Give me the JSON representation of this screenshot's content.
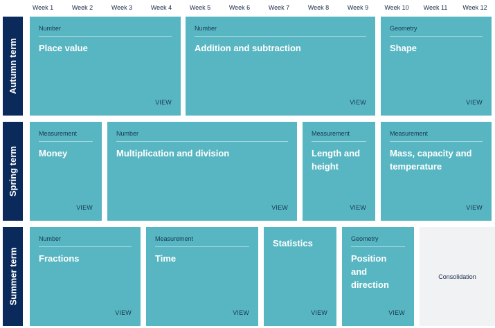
{
  "weeks": [
    "Week 1",
    "Week 2",
    "Week 3",
    "Week 4",
    "Week 5",
    "Week 6",
    "Week 7",
    "Week 8",
    "Week 9",
    "Week 10",
    "Week 11",
    "Week 12"
  ],
  "terms": {
    "autumn": {
      "label": "Autumn term",
      "cards": [
        {
          "category": "Number",
          "title": "Place value",
          "view": "VIEW"
        },
        {
          "category": "Number",
          "title": "Addition and subtraction",
          "view": "VIEW"
        },
        {
          "category": "Geometry",
          "title": "Shape",
          "view": "VIEW"
        }
      ]
    },
    "spring": {
      "label": "Spring term",
      "cards": [
        {
          "category": "Measurement",
          "title": "Money",
          "view": "VIEW"
        },
        {
          "category": "Number",
          "title": "Multiplication and division",
          "view": "VIEW"
        },
        {
          "category": "Measurement",
          "title": "Length and height",
          "view": "VIEW"
        },
        {
          "category": "Measurement",
          "title": "Mass, capacity and temperature",
          "view": "VIEW"
        }
      ]
    },
    "summer": {
      "label": "Summer term",
      "cards": [
        {
          "category": "Number",
          "title": "Fractions",
          "view": "VIEW"
        },
        {
          "category": "Measurement",
          "title": "Time",
          "view": "VIEW"
        },
        {
          "category": "",
          "title": "Statistics",
          "view": "VIEW"
        },
        {
          "category": "Geometry",
          "title": "Position and direction",
          "view": "VIEW"
        }
      ],
      "consolidation": "Consolidation"
    }
  },
  "colors": {
    "term_label": "#0a2a5c",
    "card": "#58b6c2",
    "consolidation": "#f1f2f3"
  }
}
